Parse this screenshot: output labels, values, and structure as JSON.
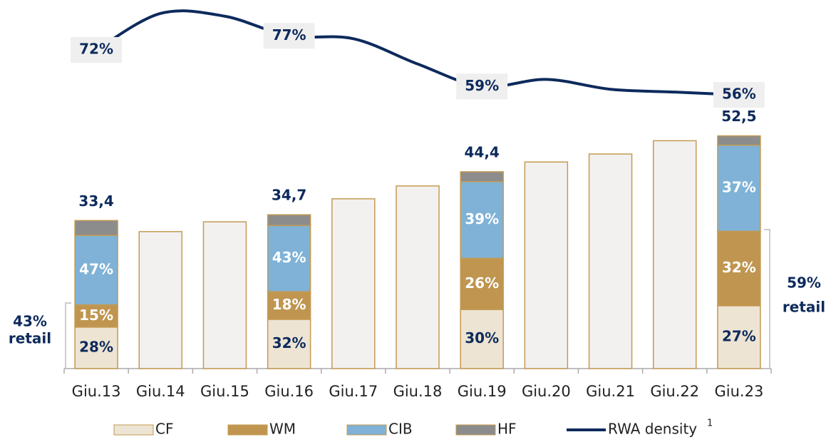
{
  "chart_data": {
    "type": "bar",
    "categories": [
      "Giu.13",
      "Giu.14",
      "Giu.15",
      "Giu.16",
      "Giu.17",
      "Giu.18",
      "Giu.19",
      "Giu.20",
      "Giu.21",
      "Giu.22",
      "Giu.23"
    ],
    "totals": [
      33.4,
      30.9,
      33.1,
      34.7,
      38.3,
      41.2,
      44.4,
      46.6,
      48.4,
      51.4,
      52.5
    ],
    "totals_labels": [
      "33,4",
      null,
      null,
      "34,7",
      null,
      null,
      "44,4",
      null,
      null,
      null,
      "52,5"
    ],
    "plain_color": "#f2f1f0",
    "border_color": "#c49a52",
    "ylim": [
      0,
      55
    ],
    "series": [
      {
        "name": "CF",
        "color": "#ede4d3",
        "label_color": "#0d2a5c",
        "values": [
          28,
          null,
          null,
          32,
          null,
          null,
          30,
          null,
          null,
          null,
          27
        ],
        "value_labels": [
          "28%",
          null,
          null,
          "32%",
          null,
          null,
          "30%",
          null,
          null,
          null,
          "27%"
        ]
      },
      {
        "name": "WM",
        "color": "#bf9550",
        "label_color": "#ffffff",
        "values": [
          15,
          null,
          null,
          18,
          null,
          null,
          26,
          null,
          null,
          null,
          32
        ],
        "value_labels": [
          "15%",
          null,
          null,
          "18%",
          null,
          null,
          "26%",
          null,
          null,
          null,
          "32%"
        ]
      },
      {
        "name": "CIB",
        "color": "#7fb2d6",
        "label_color": "#ffffff",
        "values": [
          47,
          null,
          null,
          43,
          null,
          null,
          39,
          null,
          null,
          null,
          37
        ],
        "value_labels": [
          "47%",
          null,
          null,
          "43%",
          null,
          null,
          "39%",
          null,
          null,
          null,
          "37%"
        ]
      },
      {
        "name": "HF",
        "color": "#8c8c8c",
        "values": [
          10,
          null,
          null,
          7,
          null,
          null,
          5,
          null,
          null,
          null,
          4
        ]
      }
    ],
    "line": {
      "name": "RWA density",
      "legend_note": "1",
      "color": "#0d2a5c",
      "axis": "y2",
      "values": [
        72,
        85,
        84,
        77,
        76,
        67,
        59,
        61.5,
        58,
        57,
        56
      ],
      "value_labels": [
        "72%",
        null,
        null,
        "77%",
        null,
        null,
        "59%",
        null,
        null,
        null,
        "56%"
      ]
    },
    "y2lim": [
      50,
      88
    ],
    "annotations": [
      {
        "lines": [
          "43%",
          "retail"
        ]
      },
      {
        "lines": [
          "59%",
          "retail"
        ]
      }
    ]
  }
}
